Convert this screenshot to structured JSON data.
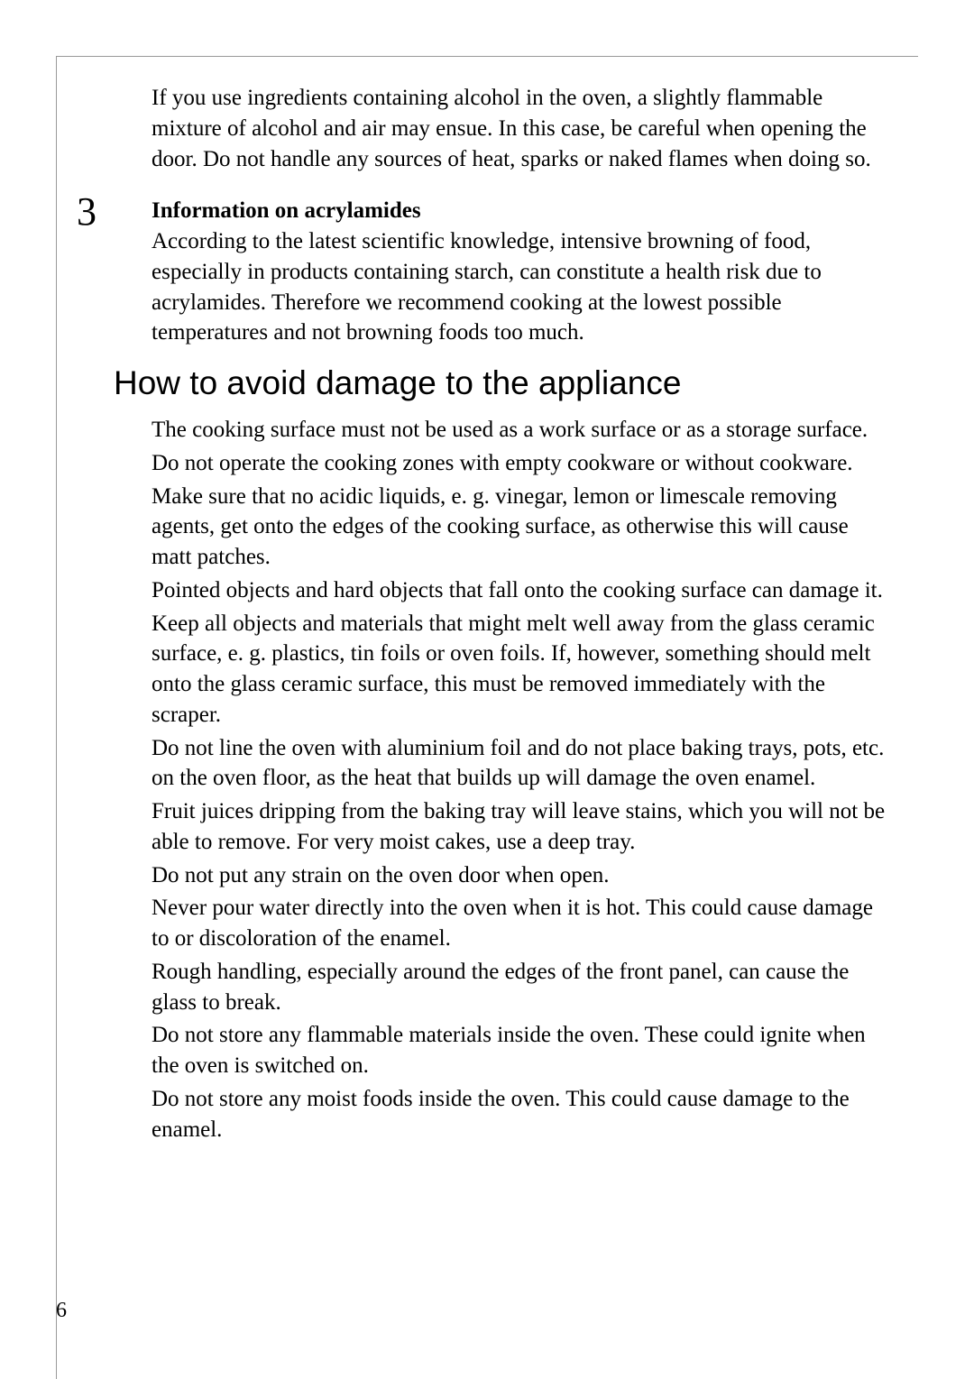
{
  "page": {
    "number": "6"
  },
  "intro_para": "If you use ingredients containing alcohol in the oven, a slightly flammable mixture of alcohol and air may ensue. In this case, be careful when opening the door. Do not handle any sources of heat, sparks or naked flames when doing so.",
  "acrylamides": {
    "number": "3",
    "heading": "Information on acrylamides",
    "body": "According to the latest scientific knowledge, intensive browning of food, especially in products containing starch, can constitute a health risk due to acrylamides. Therefore we recommend cooking at the lowest possible temperatures and not browning foods too much."
  },
  "damage": {
    "title": "How to avoid damage to the appliance",
    "items": [
      "The cooking surface must not be used as a work surface or as a storage surface.",
      "Do not operate the cooking zones with empty cookware or without cookware.",
      "Make sure that no acidic liquids, e. g. vinegar, lemon or limescale removing agents, get onto the edges of the cooking surface, as otherwise this will cause matt patches.",
      "Pointed objects and hard objects that fall onto the cooking surface can damage it.",
      "Keep all objects and materials that might melt well away from the glass ceramic surface, e. g. plastics, tin foils or oven foils. If, however, something should melt onto the glass ceramic surface, this must be removed immediately with the scraper.",
      "Do not line the oven with aluminium foil and do not place baking trays, pots, etc. on the oven floor, as the heat that builds up will damage the oven enamel.",
      "Fruit juices dripping from the baking tray will leave stains, which you will not be able to remove. For very moist cakes, use a deep tray.",
      "Do not put any strain on the oven door when open.",
      "Never pour water directly into the oven when it is hot. This could cause damage to or discoloration of the enamel.",
      "Rough handling, especially around the edges of the front panel, can cause the glass to break.",
      "Do not store any flammable materials inside the oven. These could ignite when the oven is switched on.",
      "Do not store any moist foods inside the oven. This could cause damage to the enamel."
    ]
  }
}
